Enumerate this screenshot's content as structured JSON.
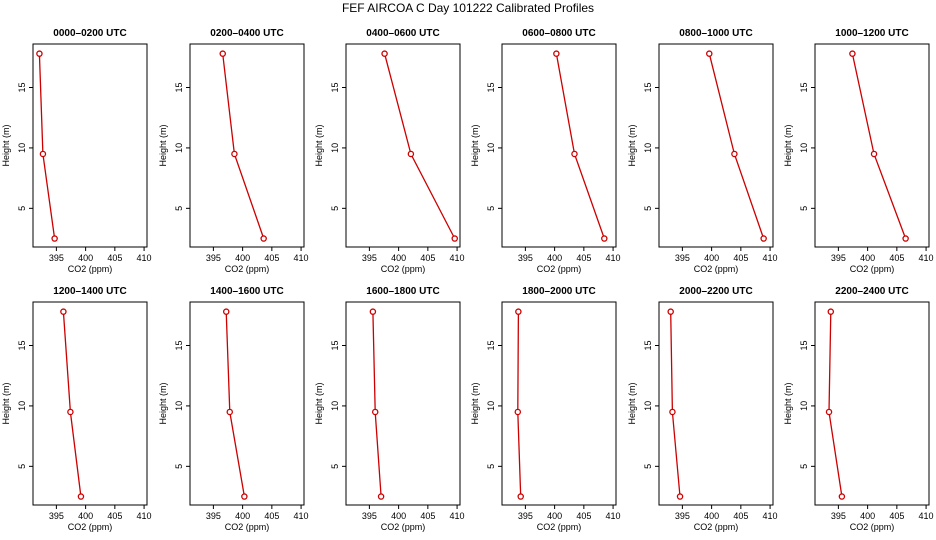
{
  "title": "FEF AIRCOA C  Day 101222  Calibrated Profiles",
  "chart_data": {
    "type": "line",
    "xlabel": "CO2 (ppm)",
    "ylabel": "Height (m)",
    "xlim": [
      391,
      410.5
    ],
    "ylim": [
      1.8,
      18.6
    ],
    "xticks": [
      395,
      400,
      405,
      410
    ],
    "yticks": [
      5,
      10,
      15
    ],
    "series_color": "#cc0000",
    "panels": [
      {
        "title": "0000–0200 UTC",
        "heights": [
          17.8,
          9.5,
          2.5
        ],
        "co2": [
          392.1,
          392.7,
          394.7
        ]
      },
      {
        "title": "0200–0400 UTC",
        "heights": [
          17.8,
          9.5,
          2.5
        ],
        "co2": [
          396.6,
          398.6,
          403.6
        ]
      },
      {
        "title": "0400–0600 UTC",
        "heights": [
          17.8,
          9.5,
          2.5
        ],
        "co2": [
          397.6,
          402.1,
          409.6
        ]
      },
      {
        "title": "0600–0800 UTC",
        "heights": [
          17.8,
          9.5,
          2.5
        ],
        "co2": [
          400.3,
          403.4,
          408.5
        ]
      },
      {
        "title": "0800–1000 UTC",
        "heights": [
          17.8,
          9.5,
          2.5
        ],
        "co2": [
          399.6,
          403.9,
          408.9
        ]
      },
      {
        "title": "1000–1200 UTC",
        "heights": [
          17.8,
          9.5,
          2.5
        ],
        "co2": [
          397.4,
          401.1,
          406.5
        ]
      },
      {
        "title": "1200–1400 UTC",
        "heights": [
          17.8,
          9.5,
          2.5
        ],
        "co2": [
          396.2,
          397.4,
          399.2
        ]
      },
      {
        "title": "1400–1600 UTC",
        "heights": [
          17.8,
          9.5,
          2.5
        ],
        "co2": [
          397.2,
          397.8,
          400.3
        ]
      },
      {
        "title": "1600–1800 UTC",
        "heights": [
          17.8,
          9.5,
          2.5
        ],
        "co2": [
          395.6,
          396.0,
          397.0
        ]
      },
      {
        "title": "1800–2000 UTC",
        "heights": [
          17.8,
          9.5,
          2.5
        ],
        "co2": [
          393.8,
          393.7,
          394.2
        ]
      },
      {
        "title": "2000–2200 UTC",
        "heights": [
          17.8,
          9.5,
          2.5
        ],
        "co2": [
          393.0,
          393.3,
          394.6
        ]
      },
      {
        "title": "2200–2400 UTC",
        "heights": [
          17.8,
          9.5,
          2.5
        ],
        "co2": [
          393.7,
          393.4,
          395.6
        ]
      }
    ]
  }
}
